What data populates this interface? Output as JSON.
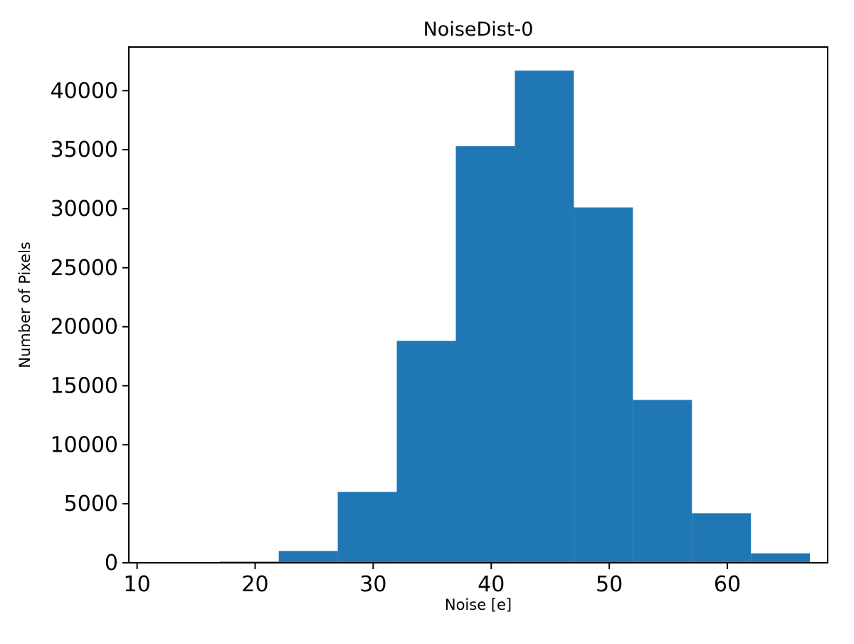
{
  "chart_data": {
    "type": "bar",
    "title": "NoiseDist-0",
    "xlabel": "Noise [e]",
    "ylabel": "Number of Pixels",
    "bar_color": "#1f77b4",
    "axis_color": "#000000",
    "background_color": "#ffffff",
    "bin_edges": [
      17,
      22,
      27,
      32,
      37,
      42,
      47,
      52,
      57,
      62,
      67
    ],
    "values": [
      100,
      1000,
      6000,
      18800,
      35300,
      41700,
      30100,
      13800,
      4200,
      800
    ],
    "xlim": [
      9.3,
      68.5
    ],
    "ylim": [
      0,
      43700
    ],
    "xticks": [
      10,
      20,
      30,
      40,
      50,
      60
    ],
    "yticks": [
      0,
      5000,
      10000,
      15000,
      20000,
      25000,
      30000,
      35000,
      40000
    ],
    "grid": false,
    "legend": null
  }
}
